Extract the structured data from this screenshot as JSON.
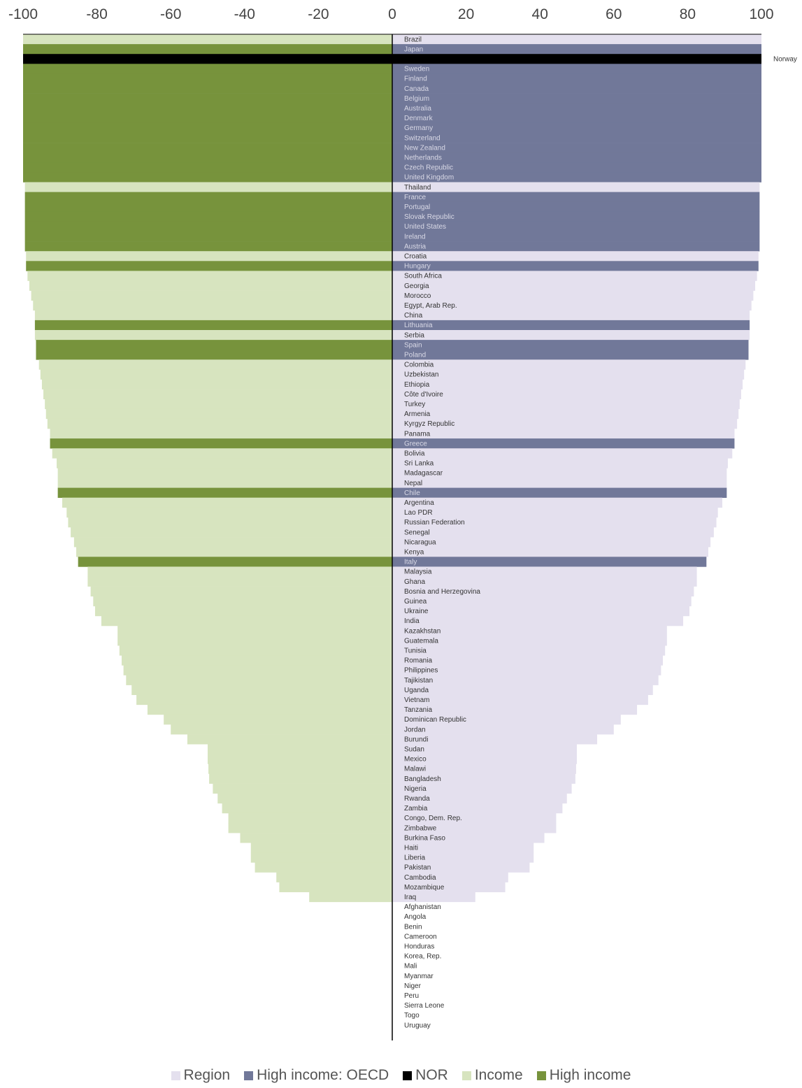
{
  "chart_data": {
    "type": "bar",
    "orientation": "horizontal",
    "xlim": [
      -100,
      100
    ],
    "x_ticks": [
      "-100",
      "-80",
      "-60",
      "-40",
      "-20",
      "0",
      "20",
      "40",
      "60",
      "80",
      "100"
    ],
    "categories": [
      "Brazil",
      "Japan",
      "Norway",
      "Sweden",
      "Finland",
      "Canada",
      "Belgium",
      "Australia",
      "Denmark",
      "Germany",
      "Switzerland",
      "New Zealand",
      "Netherlands",
      "Czech Republic",
      "United Kingdom",
      "Thailand",
      "France",
      "Portugal",
      "Slovak Republic",
      "United States",
      "Ireland",
      "Austria",
      "Croatia",
      "Hungary",
      "South Africa",
      "Georgia",
      "Morocco",
      "Egypt, Arab Rep.",
      "China",
      "Lithuania",
      "Serbia",
      "Spain",
      "Poland",
      "Colombia",
      "Uzbekistan",
      "Ethiopia",
      "Côte d'Ivoire",
      "Turkey",
      "Armenia",
      "Kyrgyz Republic",
      "Panama",
      "Greece",
      "Bolivia",
      "Sri Lanka",
      "Madagascar",
      "Nepal",
      "Chile",
      "Argentina",
      "Lao PDR",
      "Russian Federation",
      "Senegal",
      "Nicaragua",
      "Kenya",
      "Italy",
      "Malaysia",
      "Ghana",
      "Bosnia and Herzegovina",
      "Guinea",
      "Ukraine",
      "India",
      "Kazakhstan",
      "Guatemala",
      "Tunisia",
      "Romania",
      "Philippines",
      "Tajikistan",
      "Uganda",
      "Vietnam",
      "Tanzania",
      "Dominican Republic",
      "Jordan",
      "Burundi",
      "Sudan",
      "Mexico",
      "Malawi",
      "Bangladesh",
      "Nigeria",
      "Rwanda",
      "Zambia",
      "Congo, Dem. Rep.",
      "Zimbabwe",
      "Burkina Faso",
      "Haiti",
      "Liberia",
      "Pakistan",
      "Cambodia",
      "Mozambique",
      "Iraq",
      "Afghanistan",
      "Angola",
      "Benin",
      "Cameroon",
      "Honduras",
      "Korea, Rep.",
      "Mali",
      "Myanmar",
      "Niger",
      "Peru",
      "Sierra Leone",
      "Togo",
      "Uruguay"
    ],
    "group": [
      "region",
      "oecd",
      "nor",
      "oecd",
      "oecd",
      "oecd",
      "oecd",
      "oecd",
      "oecd",
      "oecd",
      "oecd",
      "oecd",
      "oecd",
      "oecd",
      "oecd",
      "region",
      "oecd",
      "oecd",
      "oecd",
      "oecd",
      "oecd",
      "oecd",
      "region",
      "oecd",
      "region",
      "region",
      "region",
      "region",
      "region",
      "oecd",
      "region",
      "oecd",
      "oecd",
      "region",
      "region",
      "region",
      "region",
      "region",
      "region",
      "region",
      "region",
      "oecd",
      "region",
      "region",
      "region",
      "region",
      "oecd",
      "region",
      "region",
      "region",
      "region",
      "region",
      "region",
      "oecd",
      "region",
      "region",
      "region",
      "region",
      "region",
      "region",
      "region",
      "region",
      "region",
      "region",
      "region",
      "region",
      "region",
      "region",
      "region",
      "region",
      "region",
      "region",
      "region",
      "region",
      "region",
      "region",
      "region",
      "region",
      "region",
      "region",
      "region",
      "region",
      "region",
      "region",
      "region",
      "region",
      "region",
      "region",
      "region",
      "region",
      "region",
      "region",
      "region",
      "region",
      "region",
      "region",
      "region",
      "region",
      "region",
      "region",
      "region"
    ],
    "right_values": [
      100,
      100,
      100,
      100,
      100,
      100,
      100,
      100,
      100,
      100,
      100,
      100,
      100,
      100,
      100,
      99.5,
      99.5,
      99.5,
      99.5,
      99.5,
      99.5,
      99.5,
      99.2,
      99.2,
      98.8,
      98.3,
      97.8,
      97.3,
      96.8,
      96.8,
      96.8,
      96.5,
      96.5,
      95.7,
      95.3,
      94.9,
      94.5,
      94.1,
      93.8,
      93.4,
      92.7,
      92.7,
      92.1,
      90.9,
      90.6,
      90.6,
      90.6,
      89.4,
      88.2,
      87.8,
      87.1,
      86.2,
      85.6,
      85.1,
      82.5,
      82.5,
      81.7,
      81.0,
      80.5,
      78.8,
      74.4,
      74.4,
      73.9,
      73.3,
      72.8,
      72.1,
      70.6,
      69.3,
      66.3,
      61.9,
      60.0,
      55.5,
      50.0,
      50.0,
      49.8,
      49.6,
      48.6,
      47.3,
      46.1,
      44.4,
      44.4,
      41.2,
      38.3,
      38.3,
      37.2,
      31.4,
      30.6,
      22.5,
      0,
      0,
      0,
      0,
      0,
      0,
      0,
      0,
      0,
      0,
      0,
      0,
      0
    ],
    "left_values": [
      -100,
      -100,
      -100,
      -100,
      -100,
      -100,
      -100,
      -100,
      -100,
      -100,
      -100,
      -100,
      -100,
      -100,
      -100,
      -99.5,
      -99.5,
      -99.5,
      -99.5,
      -99.5,
      -99.5,
      -99.5,
      -99.2,
      -99.2,
      -98.8,
      -98.3,
      -97.8,
      -97.3,
      -96.8,
      -96.8,
      -96.8,
      -96.5,
      -96.5,
      -95.7,
      -95.3,
      -94.9,
      -94.5,
      -94.1,
      -93.8,
      -93.4,
      -92.7,
      -92.7,
      -92.1,
      -90.9,
      -90.6,
      -90.6,
      -90.6,
      -89.4,
      -88.2,
      -87.8,
      -87.1,
      -86.2,
      -85.6,
      -85.1,
      -82.5,
      -82.5,
      -81.7,
      -81.0,
      -80.5,
      -78.8,
      -74.4,
      -74.4,
      -73.9,
      -73.3,
      -72.8,
      -72.1,
      -70.6,
      -69.3,
      -66.3,
      -61.9,
      -60.0,
      -55.5,
      -50.0,
      -50.0,
      -49.8,
      -49.6,
      -48.6,
      -47.3,
      -46.1,
      -44.4,
      -44.4,
      -41.2,
      -38.3,
      -38.3,
      -37.2,
      -31.4,
      -30.6,
      -22.5,
      0,
      0,
      0,
      0,
      0,
      0,
      0,
      0,
      0,
      0,
      0,
      0,
      0
    ],
    "legend_position": "bottom",
    "legend": [
      {
        "key": "region",
        "label": "Region",
        "color": "#e4e0ee"
      },
      {
        "key": "oecd",
        "label": "High income: OECD",
        "color": "#717899"
      },
      {
        "key": "nor",
        "label": "NOR",
        "color": "#000000"
      },
      {
        "key": "income",
        "label": "Income",
        "color": "#d7e4bf"
      },
      {
        "key": "high_income",
        "label": "High income",
        "color": "#77933c"
      }
    ],
    "label_colors": {
      "light_bar": "#333333",
      "dark_bar": "#d9d9e6"
    },
    "grid": false,
    "title": "",
    "xlabel": "",
    "ylabel": ""
  }
}
